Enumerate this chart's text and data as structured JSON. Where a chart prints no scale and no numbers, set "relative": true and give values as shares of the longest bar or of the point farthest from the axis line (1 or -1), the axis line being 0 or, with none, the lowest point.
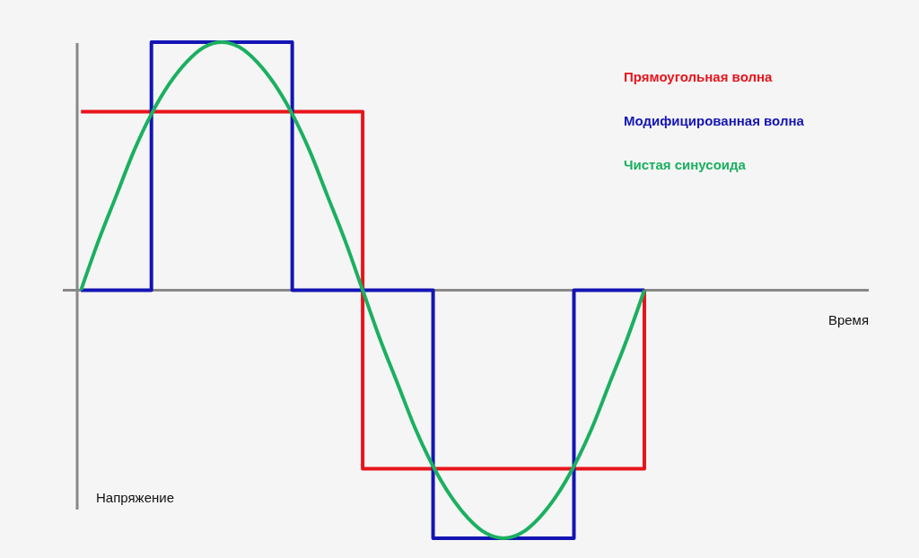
{
  "chart_data": {
    "type": "line",
    "relative": true,
    "annotations": [
      "Время"
    ],
    "ylabel": "Напряжение",
    "legend": "top right",
    "categories": [
      null,
      null,
      null,
      null,
      null,
      null,
      null,
      null,
      null,
      null,
      null,
      null,
      null,
      null,
      null,
      null,
      null,
      null,
      null,
      null,
      null,
      null,
      null,
      null,
      null,
      null,
      null,
      null,
      null,
      null,
      null,
      null,
      null
    ],
    "series": [
      {
        "name": "Прямоугольная волна",
        "type": "step",
        "color": "#e8141b",
        "values": [
          0.72,
          0.72,
          0.72,
          0.72,
          0.72,
          0.72,
          0.72,
          0.72,
          0.72,
          0.72,
          0.72,
          0.72,
          0.72,
          0.72,
          0.72,
          0.72,
          -0.72,
          -0.72,
          -0.72,
          -0.72,
          -0.72,
          -0.72,
          -0.72,
          -0.72,
          -0.72,
          -0.72,
          -0.72,
          -0.72,
          -0.72,
          -0.72,
          -0.72,
          -0.72,
          0
        ]
      },
      {
        "name": "Модифицированная волна",
        "type": "step",
        "color": "#1414b4",
        "values": [
          0,
          0,
          0,
          0,
          1,
          1,
          1,
          1,
          1,
          1,
          1,
          1,
          0,
          0,
          0,
          0,
          0,
          0,
          0,
          0,
          -1,
          -1,
          -1,
          -1,
          -1,
          -1,
          -1,
          -1,
          0,
          0,
          0,
          0,
          0
        ]
      },
      {
        "name": "Чистая синусоида",
        "color": "#1bb060",
        "values": [
          0,
          0.2,
          0.38,
          0.56,
          0.71,
          0.83,
          0.92,
          0.98,
          1,
          0.98,
          0.92,
          0.83,
          0.71,
          0.56,
          0.38,
          0.2,
          0,
          -0.2,
          -0.38,
          -0.56,
          -0.71,
          -0.83,
          -0.92,
          -0.98,
          -1,
          -0.98,
          -0.92,
          -0.83,
          -0.71,
          -0.56,
          -0.38,
          -0.2,
          0
        ]
      }
    ]
  }
}
